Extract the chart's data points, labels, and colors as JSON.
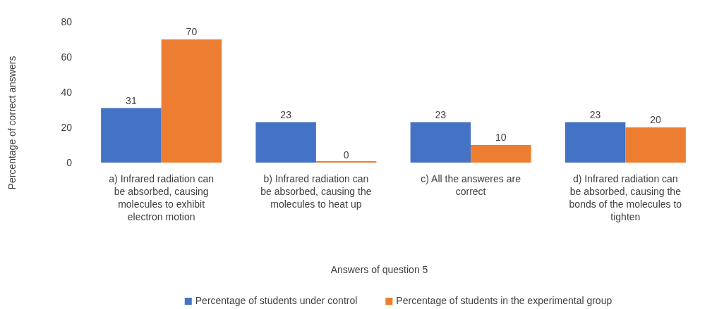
{
  "chart_data": {
    "type": "bar",
    "xlabel": "Answers of question 5",
    "ylabel": "Percentage of correct answers",
    "categories": [
      "a) Infrared radiation can be absorbed, causing molecules to exhibit electron motion",
      "b) Infrared radiation can be absorbed, causing the molecules to heat up",
      "c) All the answeres are correct",
      "d) Infrared radiation can be absorbed, causing the bonds of the molecules to tighten"
    ],
    "series": [
      {
        "name": "Percentage of students under control",
        "color": "#4472c4",
        "values": [
          31,
          23,
          23,
          23
        ]
      },
      {
        "name": "Percentage of students in the experimental group",
        "color": "#ed7d31",
        "values": [
          70,
          0,
          10,
          20
        ]
      }
    ],
    "ylim": [
      0,
      80
    ],
    "yticks": [
      0,
      20,
      40,
      60,
      80
    ],
    "data_labels": true,
    "grid": false,
    "legend": "bottom"
  }
}
